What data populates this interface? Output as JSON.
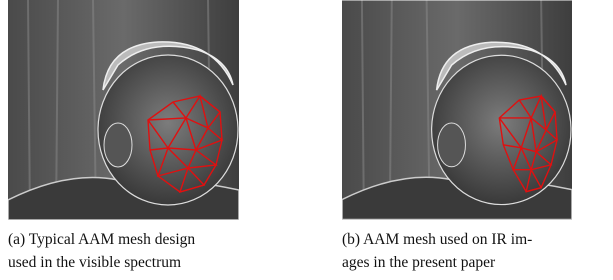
{
  "figures": [
    {
      "caption_lines": [
        "(a) Typical AAM mesh design",
        "used in the visible spectrum"
      ]
    },
    {
      "caption_lines": [
        "(b) AAM mesh used on IR im-",
        "ages in the present paper"
      ]
    }
  ]
}
